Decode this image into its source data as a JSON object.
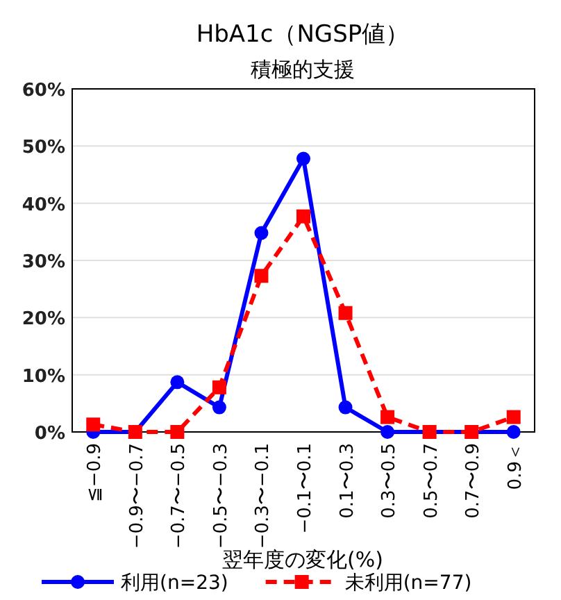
{
  "chart_data": {
    "type": "line",
    "title": "HbA1c（NGSP値）",
    "subtitle": "積極的支援",
    "xlabel": "翌年度の変化(%)",
    "categories": [
      "≦−0.9",
      "−0.9〜−0.7",
      "−0.7〜−0.5",
      "−0.5〜−0.3",
      "−0.3〜−0.1",
      "−0.1〜0.1",
      "0.1〜0.3",
      "0.3〜0.5",
      "0.5〜0.7",
      "0.7〜0.9",
      "0.9＜"
    ],
    "series": [
      {
        "name": "利用(n=23)",
        "color": "#0000ff",
        "marker": "circle",
        "line_style": "solid",
        "values": [
          0,
          0,
          8.7,
          4.3,
          34.8,
          47.8,
          4.3,
          0,
          0,
          0,
          0
        ]
      },
      {
        "name": "未利用(n=77)",
        "color": "#ff0000",
        "marker": "square",
        "line_style": "dashed",
        "values": [
          1.3,
          0,
          0,
          7.8,
          27.3,
          37.7,
          20.8,
          2.6,
          0,
          0,
          2.6
        ]
      }
    ],
    "ylim": [
      0,
      60
    ],
    "yticks": [
      {
        "value": 0,
        "label": "0%"
      },
      {
        "value": 10,
        "label": "10%"
      },
      {
        "value": 20,
        "label": "20%"
      },
      {
        "value": 30,
        "label": "30%"
      },
      {
        "value": 40,
        "label": "40%"
      },
      {
        "value": 50,
        "label": "50%"
      },
      {
        "value": 60,
        "label": "60%"
      }
    ],
    "grid": "y",
    "legend": "bottom"
  }
}
